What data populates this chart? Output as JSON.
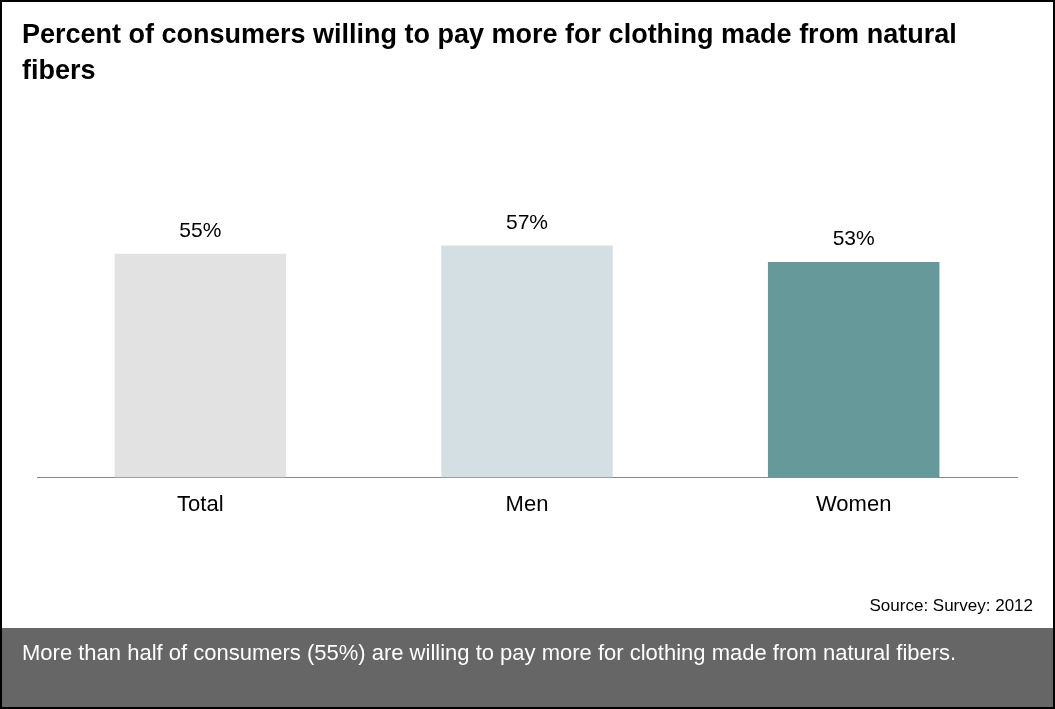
{
  "chart_data": {
    "type": "bar",
    "title": "Percent of consumers willing to pay more for clothing made from natural fibers",
    "categories": [
      "Total",
      "Men",
      "Women"
    ],
    "values": [
      55,
      57,
      53
    ],
    "colors": [
      "#e2e2e2",
      "#d4dfe3",
      "#669999"
    ],
    "value_labels": [
      "55%",
      "57%",
      "53%"
    ],
    "grid": false,
    "annotations": [
      "Source: Survey: 2012",
      "More than half of consumers (55%) are willing to pay more for clothing made from natural fibers."
    ]
  }
}
